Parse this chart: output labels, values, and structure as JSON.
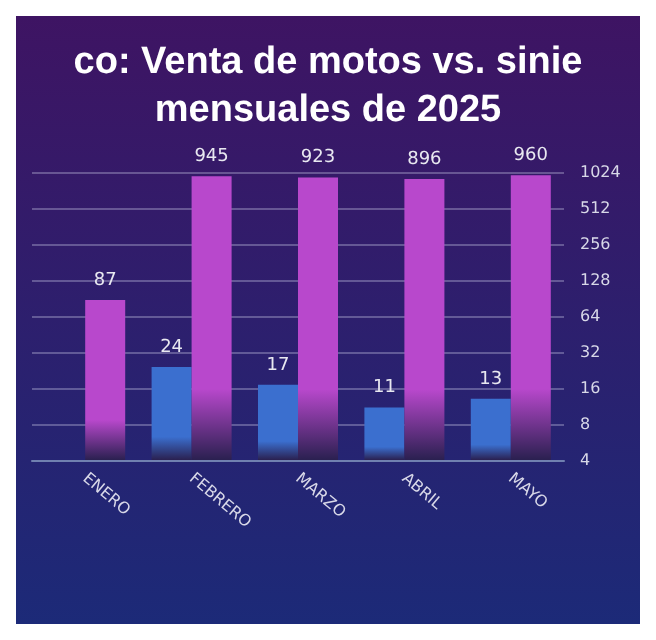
{
  "chart_data": {
    "type": "bar",
    "title": "co: Venta de motos vs. sinie\nmensuales de 2025",
    "categories": [
      "ENERO",
      "FEBRERO",
      "MARZO",
      "ABRIL",
      "MAYO"
    ],
    "series": [
      {
        "color": "#3b6fcf",
        "values": [
          null,
          24,
          17,
          11,
          13
        ]
      },
      {
        "color": "#b848cc",
        "values": [
          87,
          945,
          923,
          896,
          960
        ]
      }
    ],
    "log": true,
    "ylim": [
      4,
      1024
    ],
    "yticks": [
      4,
      8,
      16,
      32,
      64,
      128,
      256,
      512,
      1024
    ],
    "grid": "y",
    "data_labels": true
  }
}
